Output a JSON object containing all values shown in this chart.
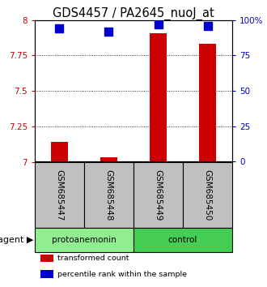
{
  "title": "GDS4457 / PA2645_nuoJ_at",
  "samples": [
    "GSM685447",
    "GSM685448",
    "GSM685449",
    "GSM685450"
  ],
  "transformed_counts": [
    7.14,
    7.03,
    7.91,
    7.83
  ],
  "percentile_ranks": [
    94,
    92,
    97,
    96
  ],
  "ylim_left": [
    7.0,
    8.0
  ],
  "ylim_right": [
    0,
    100
  ],
  "yticks_left": [
    7.0,
    7.25,
    7.5,
    7.75,
    8.0
  ],
  "yticks_right": [
    0,
    25,
    50,
    75,
    100
  ],
  "ytick_labels_left": [
    "7",
    "7.25",
    "7.5",
    "7.75",
    "8"
  ],
  "ytick_labels_right": [
    "0",
    "25",
    "50",
    "75",
    "100%"
  ],
  "groups": [
    {
      "label": "protoanemonin",
      "indices": [
        0,
        1
      ],
      "color": "#90EE90"
    },
    {
      "label": "control",
      "indices": [
        2,
        3
      ],
      "color": "#44CC55"
    }
  ],
  "bar_color": "#CC0000",
  "dot_color": "#0000CC",
  "bar_width": 0.35,
  "dot_size": 55,
  "left_tick_color": "#CC0000",
  "right_tick_color": "#0000CC",
  "agent_label": "agent",
  "legend_items": [
    {
      "label": "transformed count",
      "color": "#CC0000"
    },
    {
      "label": "percentile rank within the sample",
      "color": "#0000CC"
    }
  ],
  "sample_box_color": "#C0C0C0",
  "title_fontsize": 10.5,
  "tick_fontsize": 7.5,
  "label_fontsize": 7.5
}
